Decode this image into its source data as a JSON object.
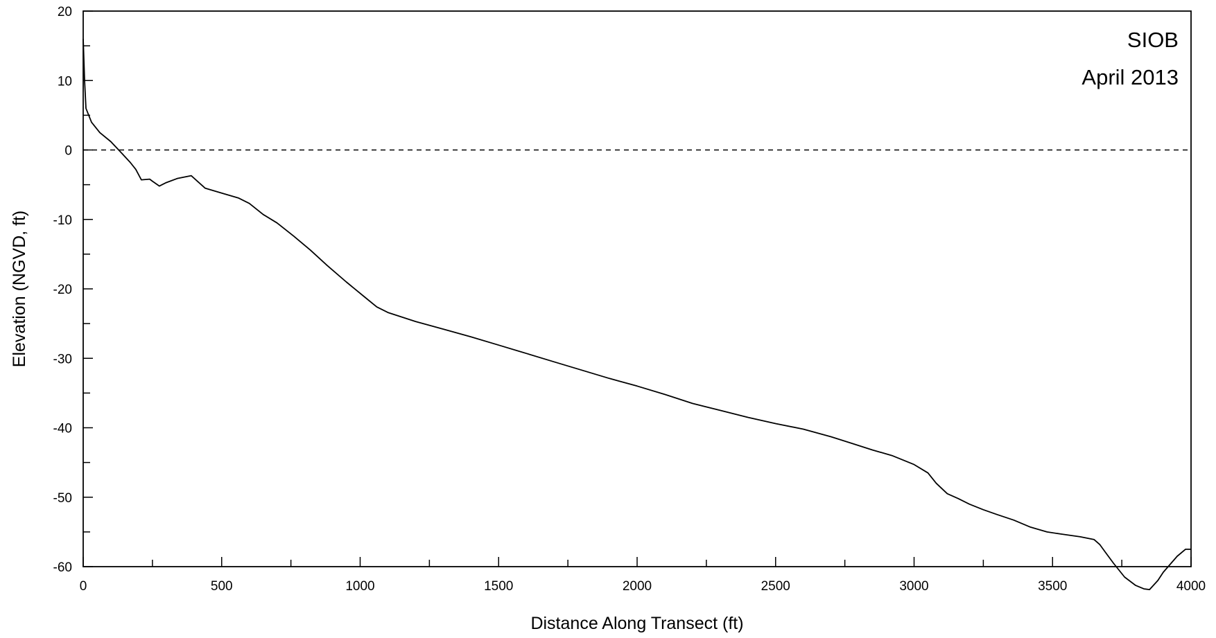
{
  "chart_data": {
    "type": "line",
    "title": "",
    "annotations": [
      "SIOB",
      "April 2013"
    ],
    "xlabel": "Distance Along Transect (ft)",
    "ylabel": "Elevation (NGVD, ft)",
    "xlim": [
      0,
      4000
    ],
    "ylim": [
      -60,
      20
    ],
    "x_ticks": [
      0,
      500,
      1000,
      1500,
      2000,
      2500,
      3000,
      3500,
      4000
    ],
    "y_ticks": [
      20,
      10,
      0,
      -10,
      -20,
      -30,
      -40,
      -50,
      -60
    ],
    "grid": false,
    "reference_line": {
      "y": 0,
      "style": "dashed"
    },
    "series": [
      {
        "x": [
          0,
          5,
          10,
          20,
          30,
          60,
          100,
          140,
          170,
          190,
          210,
          240,
          250,
          275,
          300,
          340,
          390,
          440,
          500,
          560,
          600,
          650,
          700,
          760,
          820,
          880,
          950,
          1020,
          1060,
          1100,
          1200,
          1300,
          1400,
          1500,
          1600,
          1700,
          1800,
          1900,
          2000,
          2100,
          2200,
          2300,
          2400,
          2500,
          2600,
          2700,
          2780,
          2850,
          2920,
          3000,
          3050,
          3080,
          3120,
          3160,
          3200,
          3250,
          3300,
          3360,
          3420,
          3480,
          3530,
          3600,
          3650,
          3670,
          3690,
          3720,
          3760,
          3800,
          3830,
          3850,
          3880,
          3900,
          3950,
          3980,
          4000
        ],
        "y": [
          16,
          10,
          6,
          5,
          4,
          2.5,
          1.2,
          -0.5,
          -1.8,
          -2.8,
          -4.3,
          -4.2,
          -4.5,
          -5.2,
          -4.7,
          -4.1,
          -3.7,
          -5.5,
          -6.2,
          -6.9,
          -7.7,
          -9.3,
          -10.5,
          -12.4,
          -14.4,
          -16.6,
          -19,
          -21.3,
          -22.6,
          -23.4,
          -24.7,
          -25.8,
          -26.9,
          -28.1,
          -29.3,
          -30.5,
          -31.7,
          -32.9,
          -34,
          -35.2,
          -36.5,
          -37.5,
          -38.5,
          -39.4,
          -40.2,
          -41.3,
          -42.3,
          -43.2,
          -44,
          -45.3,
          -46.5,
          -48,
          -49.5,
          -50.2,
          -51,
          -51.8,
          -52.5,
          -53.3,
          -54.3,
          -55,
          -55.3,
          -55.7,
          -56.1,
          -56.8,
          -57.9,
          -59.5,
          -61.5,
          -62.7,
          -63.2,
          -63.3,
          -62,
          -60.8,
          -58.5,
          -57.5,
          -57.5
        ]
      }
    ]
  }
}
